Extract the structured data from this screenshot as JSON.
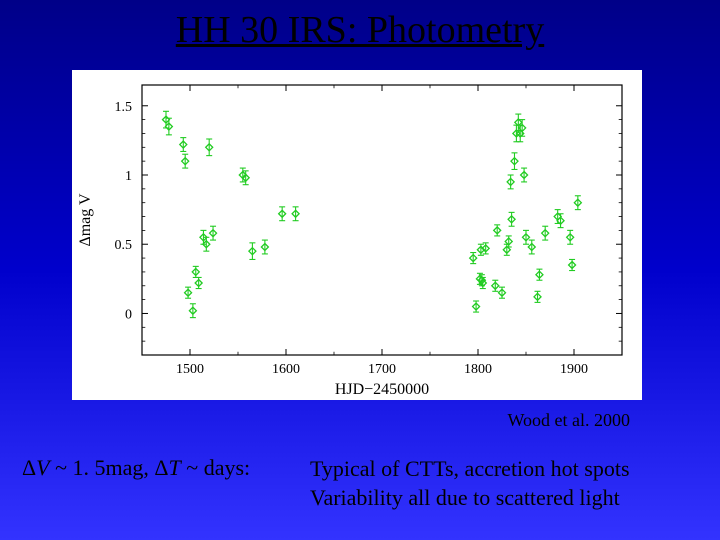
{
  "title": "HH 30 IRS: Photometry",
  "citation": "Wood et al. 2000",
  "bottom_left_html": "Δ<span class=var>V</span> ~ 1. 5mag, Δ<span class=var>T</span> ~ days:",
  "bottom_right_line1": "Typical of CTTs, accretion hot spots",
  "bottom_right_line2": "Variability all due to scattered light",
  "chart": {
    "type": "scatter-errorbar",
    "background_color": "#ffffff",
    "point_color": "#22cc22",
    "point_marker": "diamond",
    "point_size": 3.5,
    "errorbar_color": "#22cc22",
    "errorbar_width": 1.1,
    "axis_color": "#000000",
    "tick_len": 6,
    "label_color": "#000000",
    "label_fontsize": 14,
    "xlabel": "HJD−2450000",
    "ylabel": "Δmag V",
    "xlim": [
      1450,
      1950
    ],
    "ylim": [
      -0.3,
      1.65
    ],
    "y_inverted": true,
    "xticks": [
      1500,
      1600,
      1700,
      1800,
      1900
    ],
    "yticks": [
      0,
      0.5,
      1,
      1.5
    ],
    "ytick_labels": [
      "0",
      "0.5",
      "1",
      "1.5"
    ],
    "data": [
      {
        "x": 1475,
        "y": 1.4,
        "ey": 0.06
      },
      {
        "x": 1478,
        "y": 1.35,
        "ey": 0.06
      },
      {
        "x": 1493,
        "y": 1.22,
        "ey": 0.05
      },
      {
        "x": 1495,
        "y": 1.1,
        "ey": 0.05
      },
      {
        "x": 1498,
        "y": 0.15,
        "ey": 0.04
      },
      {
        "x": 1503,
        "y": 0.02,
        "ey": 0.05
      },
      {
        "x": 1506,
        "y": 0.3,
        "ey": 0.04
      },
      {
        "x": 1509,
        "y": 0.22,
        "ey": 0.04
      },
      {
        "x": 1514,
        "y": 0.55,
        "ey": 0.05
      },
      {
        "x": 1517,
        "y": 0.5,
        "ey": 0.05
      },
      {
        "x": 1520,
        "y": 1.2,
        "ey": 0.06
      },
      {
        "x": 1524,
        "y": 0.58,
        "ey": 0.05
      },
      {
        "x": 1555,
        "y": 1.0,
        "ey": 0.05
      },
      {
        "x": 1558,
        "y": 0.98,
        "ey": 0.05
      },
      {
        "x": 1565,
        "y": 0.45,
        "ey": 0.06
      },
      {
        "x": 1578,
        "y": 0.48,
        "ey": 0.05
      },
      {
        "x": 1596,
        "y": 0.72,
        "ey": 0.05
      },
      {
        "x": 1610,
        "y": 0.72,
        "ey": 0.05
      },
      {
        "x": 1795,
        "y": 0.4,
        "ey": 0.04
      },
      {
        "x": 1798,
        "y": 0.05,
        "ey": 0.04
      },
      {
        "x": 1802,
        "y": 0.25,
        "ey": 0.04
      },
      {
        "x": 1803,
        "y": 0.46,
        "ey": 0.04
      },
      {
        "x": 1804,
        "y": 0.24,
        "ey": 0.04
      },
      {
        "x": 1805,
        "y": 0.22,
        "ey": 0.04
      },
      {
        "x": 1808,
        "y": 0.47,
        "ey": 0.04
      },
      {
        "x": 1818,
        "y": 0.2,
        "ey": 0.04
      },
      {
        "x": 1820,
        "y": 0.6,
        "ey": 0.04
      },
      {
        "x": 1825,
        "y": 0.15,
        "ey": 0.04
      },
      {
        "x": 1830,
        "y": 0.46,
        "ey": 0.04
      },
      {
        "x": 1832,
        "y": 0.52,
        "ey": 0.04
      },
      {
        "x": 1834,
        "y": 0.95,
        "ey": 0.05
      },
      {
        "x": 1835,
        "y": 0.68,
        "ey": 0.05
      },
      {
        "x": 1838,
        "y": 1.1,
        "ey": 0.06
      },
      {
        "x": 1840,
        "y": 1.3,
        "ey": 0.06
      },
      {
        "x": 1842,
        "y": 1.38,
        "ey": 0.06
      },
      {
        "x": 1844,
        "y": 1.3,
        "ey": 0.06
      },
      {
        "x": 1846,
        "y": 1.34,
        "ey": 0.06
      },
      {
        "x": 1848,
        "y": 1.0,
        "ey": 0.05
      },
      {
        "x": 1850,
        "y": 0.55,
        "ey": 0.05
      },
      {
        "x": 1856,
        "y": 0.48,
        "ey": 0.05
      },
      {
        "x": 1862,
        "y": 0.12,
        "ey": 0.04
      },
      {
        "x": 1864,
        "y": 0.28,
        "ey": 0.04
      },
      {
        "x": 1870,
        "y": 0.58,
        "ey": 0.05
      },
      {
        "x": 1883,
        "y": 0.7,
        "ey": 0.05
      },
      {
        "x": 1886,
        "y": 0.67,
        "ey": 0.05
      },
      {
        "x": 1896,
        "y": 0.55,
        "ey": 0.05
      },
      {
        "x": 1898,
        "y": 0.35,
        "ey": 0.04
      },
      {
        "x": 1904,
        "y": 0.8,
        "ey": 0.05
      }
    ]
  }
}
